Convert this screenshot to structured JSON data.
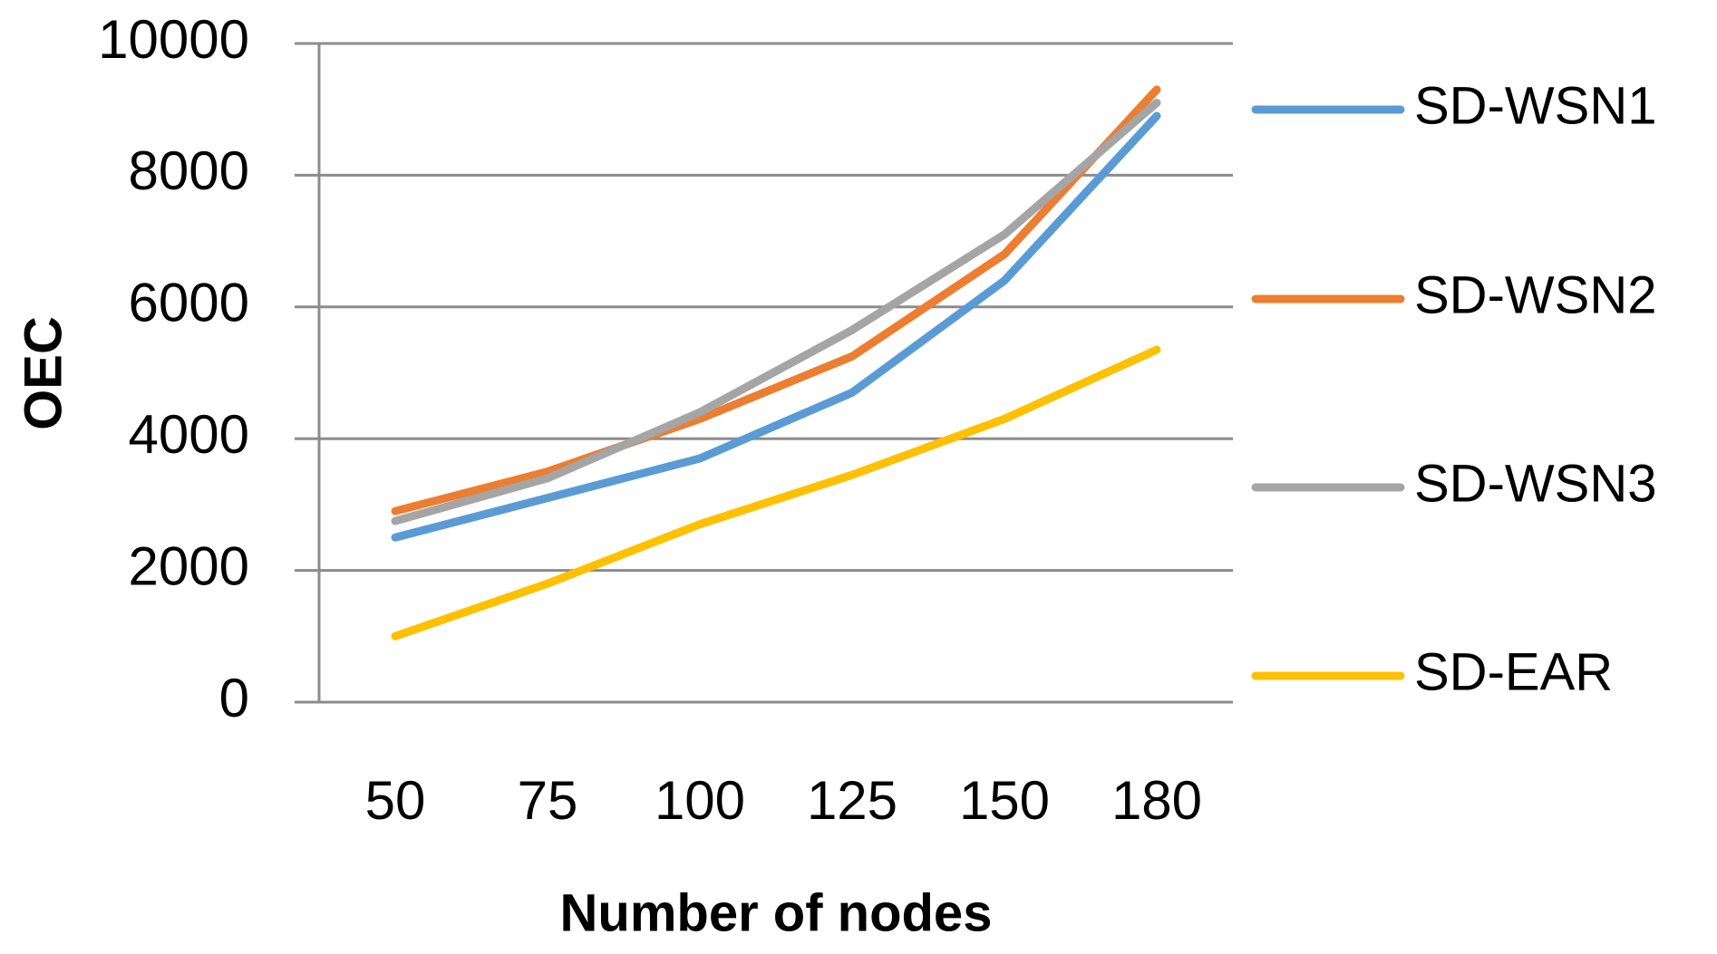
{
  "chart_data": {
    "type": "line",
    "x_label": "Number of nodes",
    "y_label": "OEC",
    "categories": [
      "50",
      "75",
      "100",
      "125",
      "150",
      "180"
    ],
    "series": [
      {
        "name": "SD-WSN1",
        "color": "#5b9bd5",
        "values": [
          2500,
          3100,
          3700,
          4700,
          6400,
          8900
        ]
      },
      {
        "name": "SD-WSN2",
        "color": "#ed7d31",
        "values": [
          2900,
          3500,
          4300,
          5250,
          6800,
          9300
        ]
      },
      {
        "name": "SD-WSN3",
        "color": "#a5a5a5",
        "values": [
          2750,
          3400,
          4400,
          5650,
          7100,
          9100
        ]
      },
      {
        "name": "SD-EAR",
        "color": "#ffc000",
        "values": [
          1000,
          1800,
          2700,
          3450,
          4300,
          5350
        ]
      }
    ],
    "ylim": [
      0,
      10000
    ],
    "yticks": [
      0,
      2000,
      4000,
      6000,
      8000,
      10000
    ],
    "grid": true,
    "legend": "right"
  }
}
